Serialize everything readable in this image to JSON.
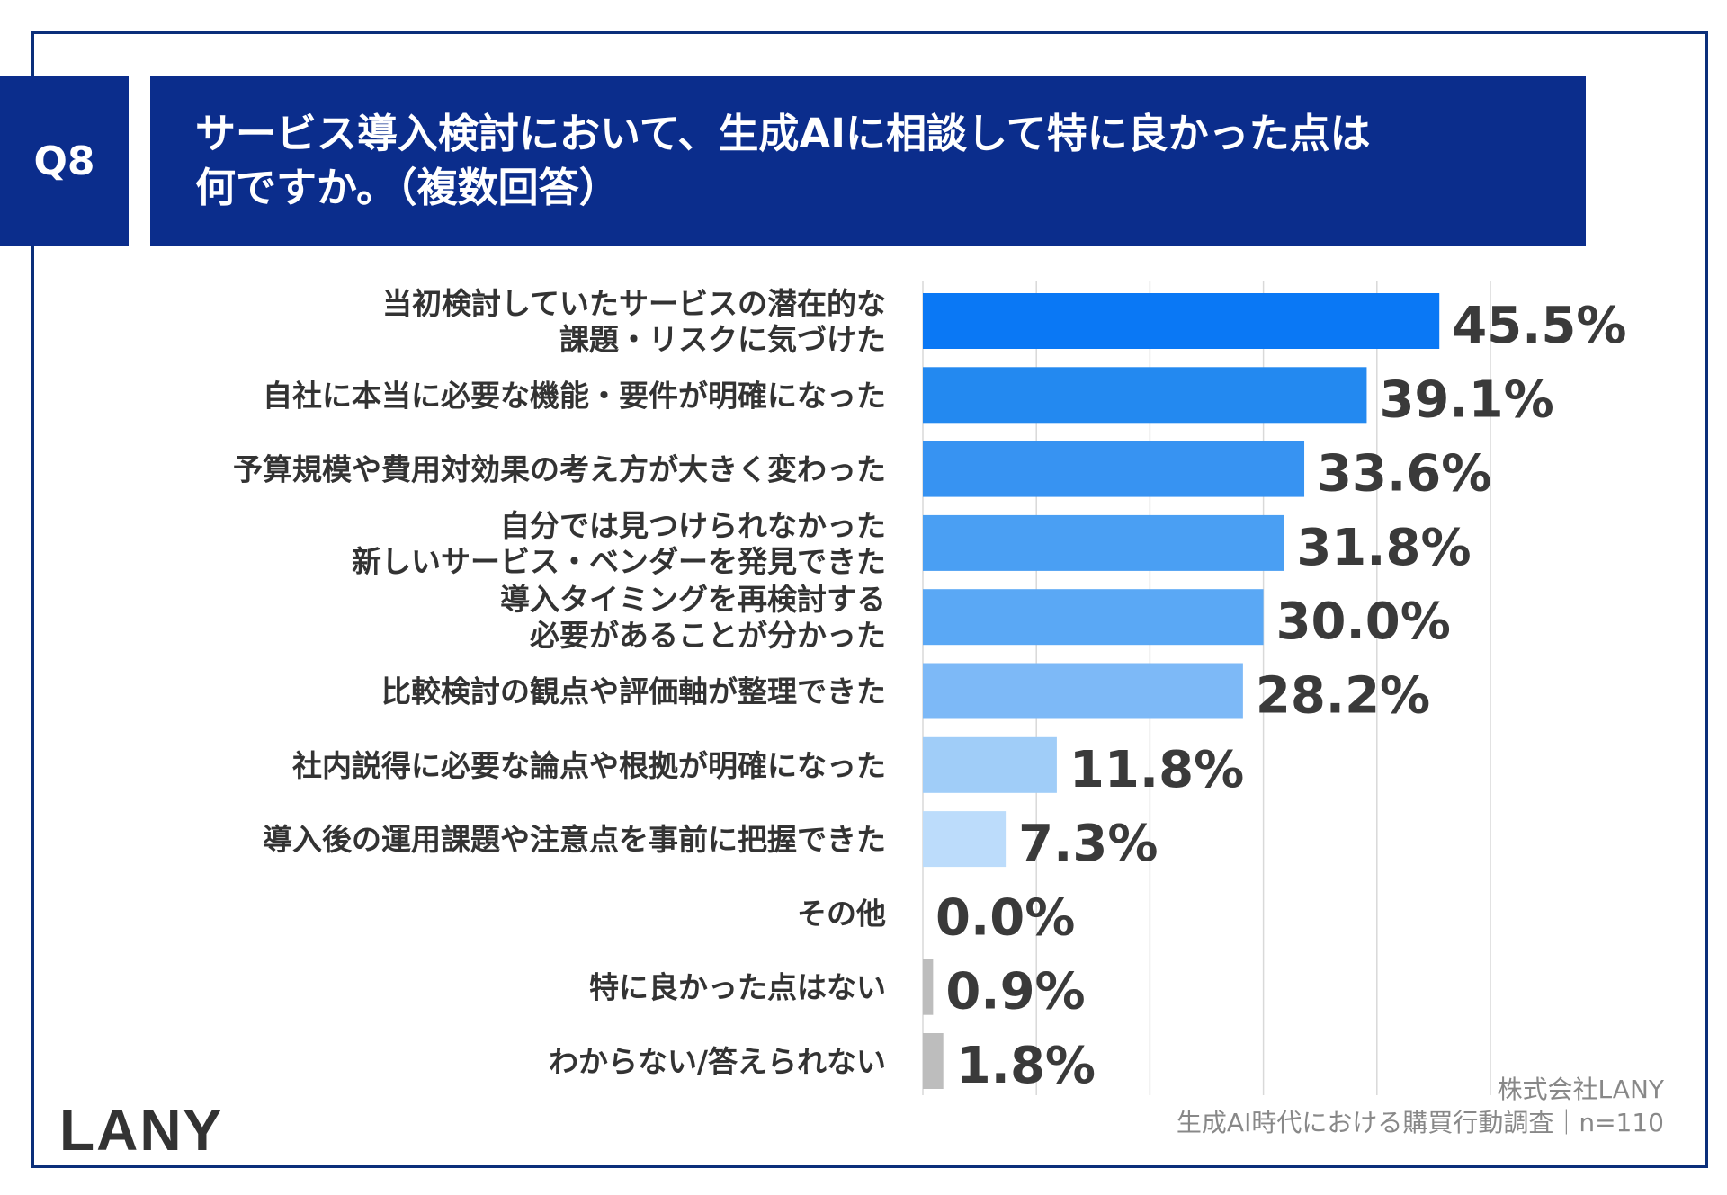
{
  "header": {
    "badge": "Q8",
    "title_line1": "サービス導入検討において、生成AIに相談して特に良かった点は",
    "title_line2": "何ですか。（複数回答）"
  },
  "footer": {
    "logo": "LANY",
    "company": "株式会社LANY",
    "survey": "生成AI時代における購買行動調査｜n=110"
  },
  "chart_data": {
    "type": "bar",
    "orientation": "horizontal",
    "grid": true,
    "categories": [
      [
        "当初検討していたサービスの潜在的な",
        "課題・リスクに気づけた"
      ],
      [
        "自社に本当に必要な機能・要件が明確になった"
      ],
      [
        "予算規模や費用対効果の考え方が大きく変わった"
      ],
      [
        "自分では見つけられなかった",
        "新しいサービス・ベンダーを発見できた"
      ],
      [
        "導入タイミングを再検討する",
        "必要があることが分かった"
      ],
      [
        "比較検討の観点や評価軸が整理できた"
      ],
      [
        "社内説得に必要な論点や根拠が明確になった"
      ],
      [
        "導入後の運用課題や注意点を事前に把握できた"
      ],
      [
        "その他"
      ],
      [
        "特に良かった点はない"
      ],
      [
        "わからない/答えられない"
      ]
    ],
    "values": [
      45.5,
      39.1,
      33.6,
      31.8,
      30.0,
      28.2,
      11.8,
      7.3,
      0.0,
      0.9,
      1.8
    ],
    "value_labels": [
      "45.5%",
      "39.1%",
      "33.6%",
      "31.8%",
      "30.0%",
      "28.2%",
      "11.8%",
      "7.3%",
      "0.0%",
      "0.9%",
      "1.8%"
    ],
    "bar_colors": [
      "#0a78f5",
      "#2389f0",
      "#3793f2",
      "#4a9ff3",
      "#5aa8f5",
      "#7db9f7",
      "#a0cdf8",
      "#bcdcfb",
      "#bdbdbd",
      "#bdbdbd",
      "#bdbdbd"
    ],
    "grid_color": "#d9d9d9",
    "title": "",
    "xlabel": "",
    "ylabel": ""
  }
}
